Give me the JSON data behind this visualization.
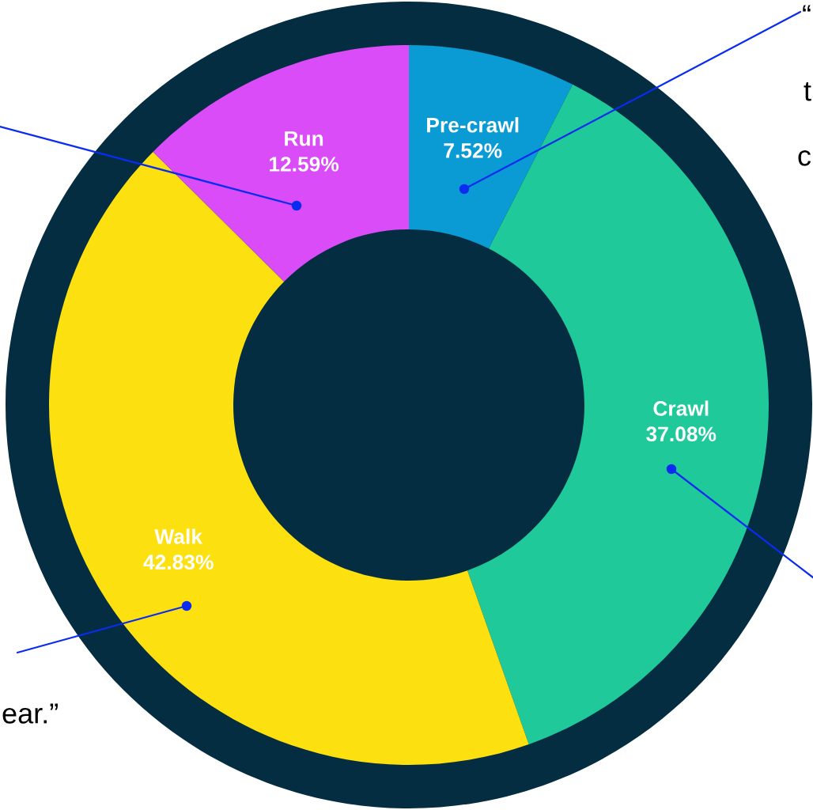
{
  "chart_data": {
    "type": "donut",
    "categories": [
      "Pre-crawl",
      "Crawl",
      "Walk",
      "Run"
    ],
    "values": [
      7.52,
      37.08,
      42.83,
      12.59
    ],
    "value_labels": [
      "7.52%",
      "37.08%",
      "42.83%",
      "12.59%"
    ],
    "colors": [
      "#0a9bd4",
      "#1fc99a",
      "#fde010",
      "#d94cf8"
    ],
    "annotations": [
      "“",
      "t",
      "c",
      "ear.”"
    ]
  }
}
